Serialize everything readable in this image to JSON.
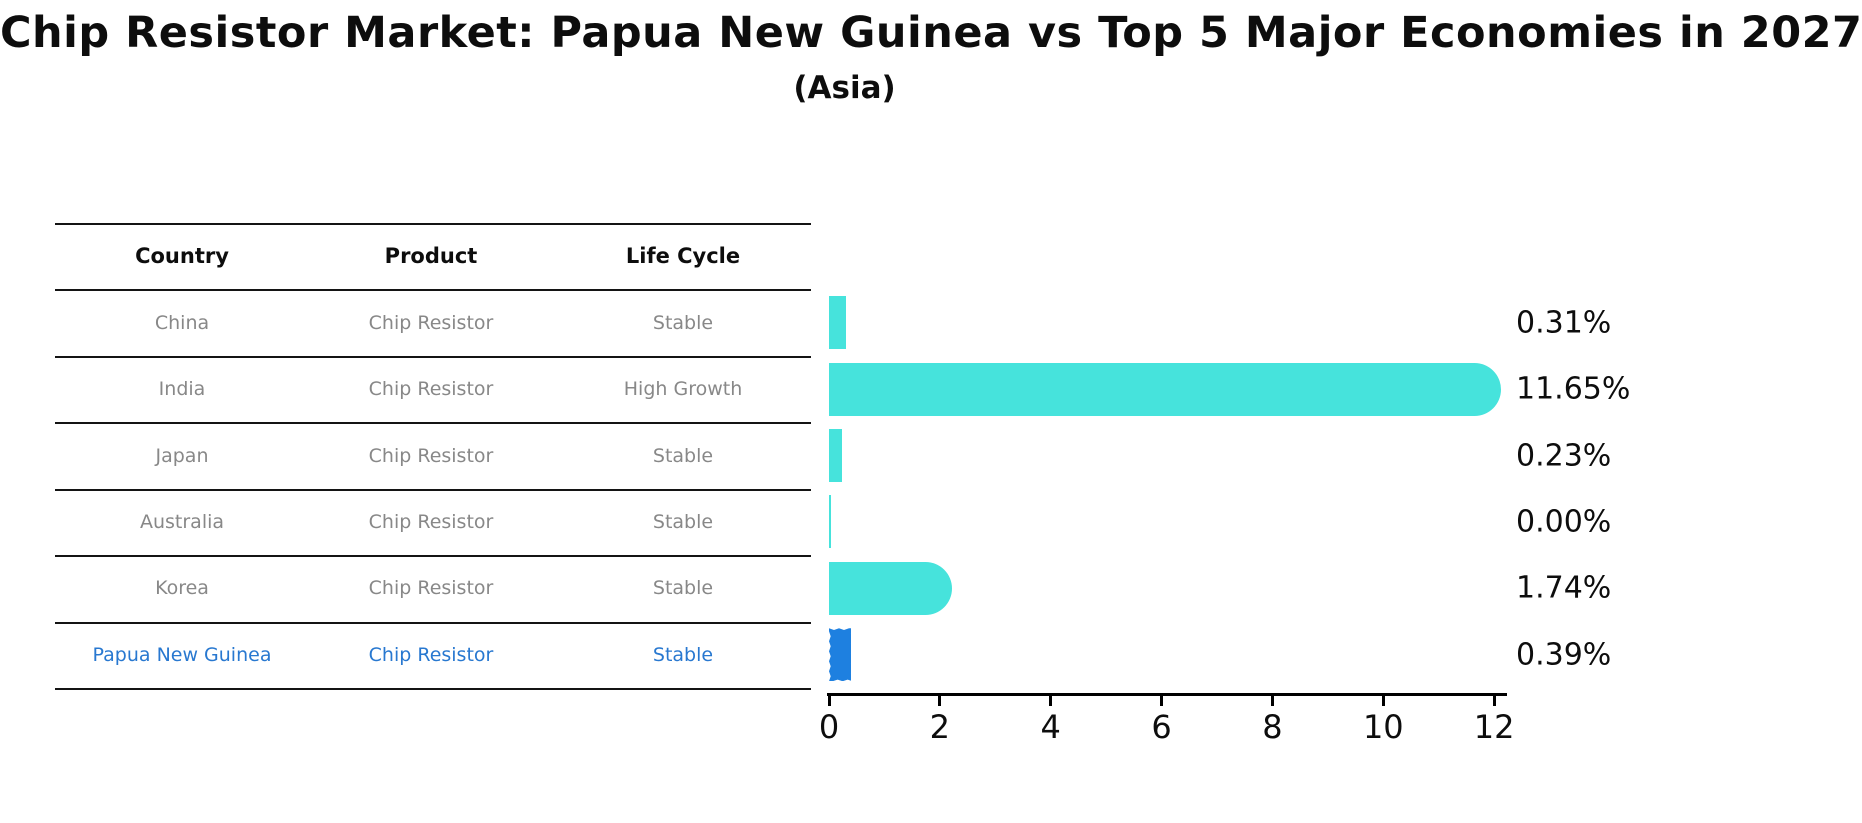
{
  "header": {
    "title": "Chip Resistor Market: Papua New Guinea vs Top 5 Major Economies in 2027",
    "subtitle": "(Asia)"
  },
  "table": {
    "columns": [
      "Country",
      "Product",
      "Life Cycle"
    ],
    "rows": [
      {
        "country": "China",
        "product": "Chip Resistor",
        "life_cycle": "Stable",
        "highlight": false
      },
      {
        "country": "India",
        "product": "Chip Resistor",
        "life_cycle": "High Growth",
        "highlight": false
      },
      {
        "country": "Japan",
        "product": "Chip Resistor",
        "life_cycle": "Stable",
        "highlight": false
      },
      {
        "country": "Australia",
        "product": "Chip Resistor",
        "life_cycle": "Stable",
        "highlight": false
      },
      {
        "country": "Korea",
        "product": "Chip Resistor",
        "life_cycle": "Stable",
        "highlight": false
      },
      {
        "country": "Papua New Guinea",
        "product": "Chip Resistor",
        "life_cycle": "Stable",
        "highlight": true
      }
    ]
  },
  "chart_data": {
    "type": "bar",
    "orientation": "horizontal",
    "title": "Chip Resistor Market: Papua New Guinea vs Top 5 Major Economies in 2027",
    "subtitle": "(Asia)",
    "categories": [
      "China",
      "India",
      "Japan",
      "Australia",
      "Korea",
      "Papua New Guinea"
    ],
    "values": [
      0.31,
      11.65,
      0.23,
      0.0,
      1.74,
      0.39
    ],
    "value_labels": [
      "0.31%",
      "11.65%",
      "0.23%",
      "0.00%",
      "1.74%",
      "0.39%"
    ],
    "xlabel": "",
    "ylabel": "",
    "xlim": [
      0,
      12
    ],
    "xticks": [
      0,
      2,
      4,
      6,
      8,
      10,
      12
    ],
    "grid": false,
    "legend": "none",
    "bar_color": "#46e3dc",
    "highlight_color": "#1e80e0",
    "highlight_text_color": "#2878d0",
    "highlight_index": 5
  }
}
